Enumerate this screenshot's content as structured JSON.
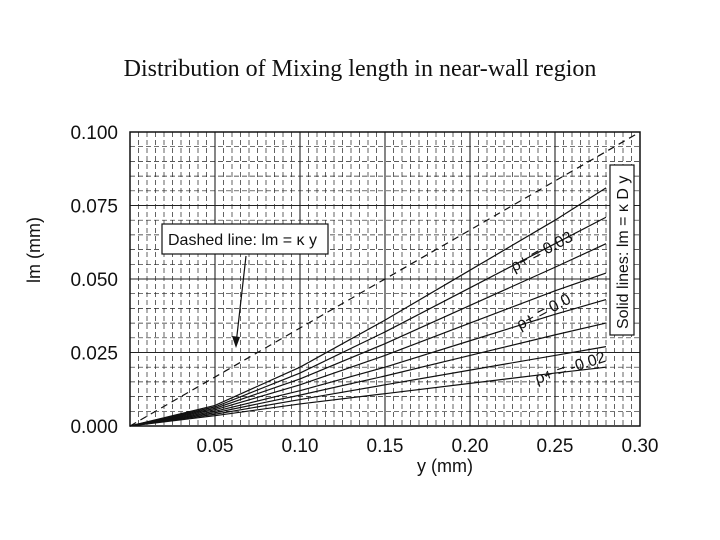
{
  "title": "Distribution of Mixing length in near-wall region",
  "colors": {
    "background": "#ffffff",
    "ink": "#111111",
    "grid": "#222222"
  },
  "chart_data": {
    "type": "line",
    "title": "Distribution of Mixing length in near-wall region",
    "xlabel": "y (mm)",
    "ylabel": "lm (mm)",
    "xlim": [
      0,
      0.3
    ],
    "ylim": [
      0,
      0.1
    ],
    "xticks": [
      0.05,
      0.1,
      0.15,
      0.2,
      0.25,
      0.3
    ],
    "xtick_labels": [
      "0.05",
      "0.10",
      "0.15",
      "0.20",
      "0.25",
      "0.30"
    ],
    "yticks": [
      0,
      0.025,
      0.05,
      0.075,
      0.1
    ],
    "ytick_labels": [
      "0.000",
      "0.025",
      "0.050",
      "0.075",
      "0.100"
    ],
    "grid": true,
    "series": [
      {
        "x": [
          0,
          0.3
        ],
        "y": [
          0,
          0.1
        ],
        "style": "dashed"
      },
      {
        "x": [
          0,
          0.05,
          0.1,
          0.15,
          0.2,
          0.25,
          0.28
        ],
        "y": [
          0,
          0.007,
          0.02,
          0.036,
          0.053,
          0.07,
          0.081
        ],
        "style": "solid"
      },
      {
        "x": [
          0,
          0.05,
          0.1,
          0.15,
          0.2,
          0.25,
          0.28
        ],
        "y": [
          0,
          0.0065,
          0.018,
          0.032,
          0.047,
          0.062,
          0.071
        ],
        "style": "solid"
      },
      {
        "x": [
          0,
          0.05,
          0.1,
          0.15,
          0.2,
          0.25,
          0.28
        ],
        "y": [
          0,
          0.006,
          0.016,
          0.028,
          0.041,
          0.054,
          0.062
        ],
        "style": "solid"
      },
      {
        "x": [
          0,
          0.05,
          0.1,
          0.15,
          0.2,
          0.25,
          0.28
        ],
        "y": [
          0,
          0.0055,
          0.014,
          0.024,
          0.035,
          0.046,
          0.052
        ],
        "style": "solid"
      },
      {
        "x": [
          0,
          0.05,
          0.1,
          0.15,
          0.2,
          0.25,
          0.28
        ],
        "y": [
          0,
          0.005,
          0.012,
          0.02,
          0.029,
          0.038,
          0.043
        ],
        "style": "solid"
      },
      {
        "x": [
          0,
          0.05,
          0.1,
          0.15,
          0.2,
          0.25,
          0.28
        ],
        "y": [
          0,
          0.0045,
          0.0105,
          0.017,
          0.024,
          0.031,
          0.035
        ],
        "style": "solid"
      },
      {
        "x": [
          0,
          0.05,
          0.1,
          0.15,
          0.2,
          0.25,
          0.28
        ],
        "y": [
          0,
          0.004,
          0.009,
          0.014,
          0.019,
          0.024,
          0.027
        ],
        "style": "solid"
      },
      {
        "x": [
          0,
          0.05,
          0.1,
          0.15,
          0.2,
          0.25,
          0.28
        ],
        "y": [
          0,
          0.0035,
          0.0075,
          0.011,
          0.0145,
          0.018,
          0.02
        ],
        "style": "solid"
      }
    ],
    "annotations": [
      {
        "text": "Dashed line: lm = κ y"
      },
      {
        "text": "Solid lines: lm = κ D y"
      },
      {
        "text": "ρ+ = 0.03"
      },
      {
        "text": "ρ+ = 0.0"
      },
      {
        "text": "ρ+ = -0.02"
      }
    ]
  }
}
